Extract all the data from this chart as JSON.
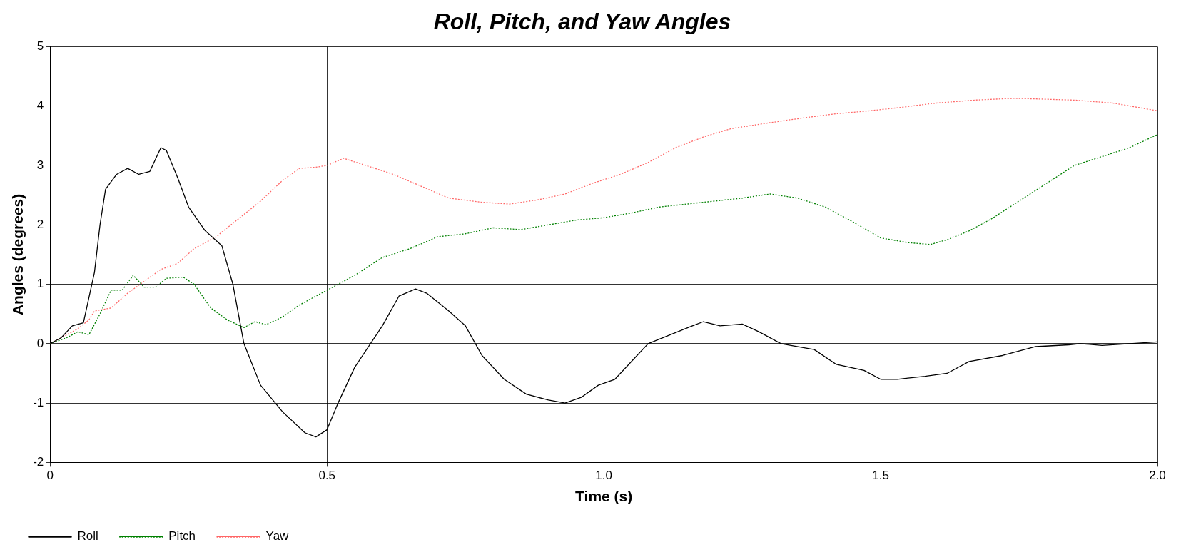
{
  "chart_data": {
    "type": "line",
    "title": "Roll, Pitch, and Yaw Angles",
    "xlabel": "Time (s)",
    "ylabel": "Angles (degrees)",
    "xlim": [
      0,
      2
    ],
    "xticks": [
      0,
      {
        "value": 0.5,
        "label": "0.5"
      },
      {
        "value": 1,
        "label": "1.0"
      },
      {
        "value": 1.5,
        "label": "1.5"
      },
      {
        "value": 2,
        "label": "2.0"
      }
    ],
    "ylim": [
      -2,
      5
    ],
    "yticks": [
      -2,
      -1,
      0,
      1,
      2,
      3,
      4,
      5
    ],
    "grid": true,
    "legend": "bottom left",
    "marker": "none",
    "series": [
      {
        "name": "Roll",
        "color": "#000000",
        "line_style": "solid",
        "x": [
          0,
          0.02,
          0.04,
          0.06,
          0.08,
          0.09,
          0.1,
          0.12,
          0.14,
          0.16,
          0.18,
          0.2,
          0.21,
          0.23,
          0.25,
          0.28,
          0.31,
          0.33,
          0.35,
          0.38,
          0.42,
          0.46,
          0.48,
          0.5,
          0.52,
          0.55,
          0.6,
          0.63,
          0.66,
          0.68,
          0.72,
          0.75,
          0.78,
          0.82,
          0.86,
          0.9,
          0.93,
          0.96,
          0.99,
          1.02,
          1.05,
          1.08,
          1.12,
          1.16,
          1.18,
          1.21,
          1.25,
          1.28,
          1.32,
          1.38,
          1.42,
          1.47,
          1.5,
          1.53,
          1.58,
          1.62,
          1.66,
          1.72,
          1.78,
          1.84,
          1.86,
          1.9,
          1.95,
          2.0
        ],
        "values": [
          0,
          0.1,
          0.3,
          0.35,
          1.2,
          2.0,
          2.6,
          2.85,
          2.95,
          2.85,
          2.9,
          3.3,
          3.25,
          2.8,
          2.3,
          1.9,
          1.65,
          1.0,
          0.0,
          -0.7,
          -1.15,
          -1.5,
          -1.57,
          -1.45,
          -1.0,
          -0.4,
          0.3,
          0.8,
          0.92,
          0.85,
          0.55,
          0.3,
          -0.2,
          -0.6,
          -0.85,
          -0.95,
          -1.0,
          -0.9,
          -0.7,
          -0.6,
          -0.3,
          0.0,
          0.15,
          0.3,
          0.37,
          0.3,
          0.33,
          0.2,
          0.0,
          -0.1,
          -0.35,
          -0.45,
          -0.6,
          -0.6,
          -0.55,
          -0.5,
          -0.3,
          -0.2,
          -0.05,
          -0.02,
          0.0,
          -0.03,
          0.0,
          0.03
        ]
      },
      {
        "name": "Pitch",
        "color": "#008000",
        "line_style": "dotted",
        "x": [
          0,
          0.03,
          0.05,
          0.07,
          0.09,
          0.11,
          0.13,
          0.15,
          0.17,
          0.19,
          0.21,
          0.24,
          0.26,
          0.29,
          0.32,
          0.35,
          0.37,
          0.39,
          0.42,
          0.45,
          0.5,
          0.55,
          0.6,
          0.65,
          0.7,
          0.75,
          0.8,
          0.85,
          0.9,
          0.95,
          1.0,
          1.05,
          1.1,
          1.15,
          1.2,
          1.25,
          1.3,
          1.35,
          1.4,
          1.45,
          1.5,
          1.55,
          1.59,
          1.62,
          1.66,
          1.7,
          1.75,
          1.8,
          1.85,
          1.9,
          1.95,
          2.0
        ],
        "values": [
          0,
          0.1,
          0.2,
          0.15,
          0.5,
          0.9,
          0.9,
          1.15,
          0.95,
          0.95,
          1.1,
          1.12,
          1.0,
          0.6,
          0.4,
          0.27,
          0.37,
          0.32,
          0.45,
          0.65,
          0.9,
          1.15,
          1.45,
          1.6,
          1.8,
          1.85,
          1.95,
          1.92,
          2.0,
          2.08,
          2.12,
          2.2,
          2.3,
          2.35,
          2.4,
          2.45,
          2.52,
          2.45,
          2.3,
          2.05,
          1.78,
          1.7,
          1.67,
          1.75,
          1.9,
          2.1,
          2.4,
          2.7,
          3.0,
          3.15,
          3.3,
          3.52
        ]
      },
      {
        "name": "Yaw",
        "color": "#ff6666",
        "line_style": "dotted",
        "x": [
          0,
          0.03,
          0.05,
          0.07,
          0.08,
          0.11,
          0.14,
          0.17,
          0.2,
          0.23,
          0.26,
          0.3,
          0.34,
          0.38,
          0.42,
          0.45,
          0.48,
          0.5,
          0.53,
          0.57,
          0.62,
          0.67,
          0.72,
          0.78,
          0.83,
          0.88,
          0.93,
          0.98,
          1.03,
          1.08,
          1.13,
          1.18,
          1.23,
          1.3,
          1.36,
          1.42,
          1.48,
          1.53,
          1.6,
          1.67,
          1.74,
          1.78,
          1.85,
          1.92,
          2.0
        ],
        "values": [
          0,
          0.15,
          0.25,
          0.4,
          0.55,
          0.6,
          0.85,
          1.05,
          1.25,
          1.35,
          1.6,
          1.8,
          2.1,
          2.4,
          2.75,
          2.95,
          2.97,
          3.0,
          3.12,
          3.0,
          2.85,
          2.65,
          2.45,
          2.38,
          2.35,
          2.42,
          2.52,
          2.7,
          2.85,
          3.05,
          3.3,
          3.48,
          3.62,
          3.72,
          3.8,
          3.87,
          3.92,
          3.97,
          4.05,
          4.1,
          4.13,
          4.12,
          4.1,
          4.05,
          3.92
        ]
      }
    ]
  }
}
